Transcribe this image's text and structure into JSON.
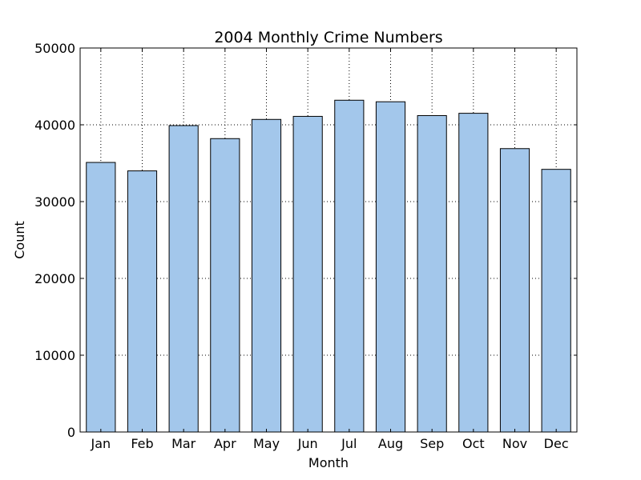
{
  "chart_data": {
    "type": "bar",
    "title": "2004 Monthly Crime Numbers",
    "xlabel": "Month",
    "ylabel": "Count",
    "categories": [
      "Jan",
      "Feb",
      "Mar",
      "Apr",
      "May",
      "Jun",
      "Jul",
      "Aug",
      "Sep",
      "Oct",
      "Nov",
      "Dec"
    ],
    "values": [
      35100,
      34000,
      39900,
      38200,
      40700,
      41100,
      43200,
      43000,
      41200,
      41500,
      36900,
      34200
    ],
    "ylim": [
      0,
      50000
    ],
    "yticks": [
      "0",
      "10000",
      "20000",
      "30000",
      "40000",
      "50000"
    ],
    "grid": true,
    "bar_color": "#a3c7eb",
    "edge_color": "#000000"
  }
}
